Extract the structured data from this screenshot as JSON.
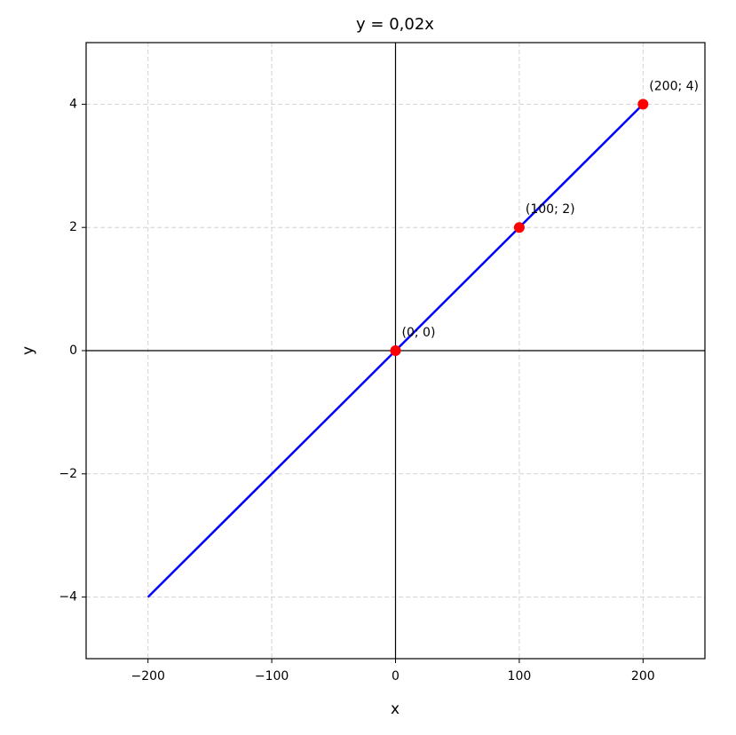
{
  "chart_data": {
    "type": "line",
    "title": "y = 0,02x",
    "xlabel": "x",
    "ylabel": "y",
    "xlim": [
      -250,
      250
    ],
    "ylim": [
      -5,
      5
    ],
    "xticks": [
      {
        "value": -200,
        "label": "−200"
      },
      {
        "value": -100,
        "label": "−100"
      },
      0,
      100,
      200
    ],
    "yticks": [
      {
        "value": -4,
        "label": "−4"
      },
      {
        "value": -2,
        "label": "−2"
      },
      0,
      2,
      4
    ],
    "grid": true,
    "zero_lines": true,
    "series": [
      {
        "kind": "line",
        "color": "#0000ff",
        "x": [
          -200,
          200
        ],
        "values": [
          -4,
          4
        ]
      },
      {
        "kind": "points",
        "color": "#ff0000",
        "x": [
          0,
          100,
          200
        ],
        "values": [
          0,
          2,
          4
        ],
        "value_labels": [
          "(0; 0)",
          "(100; 2)",
          "(200; 4)"
        ]
      }
    ]
  }
}
